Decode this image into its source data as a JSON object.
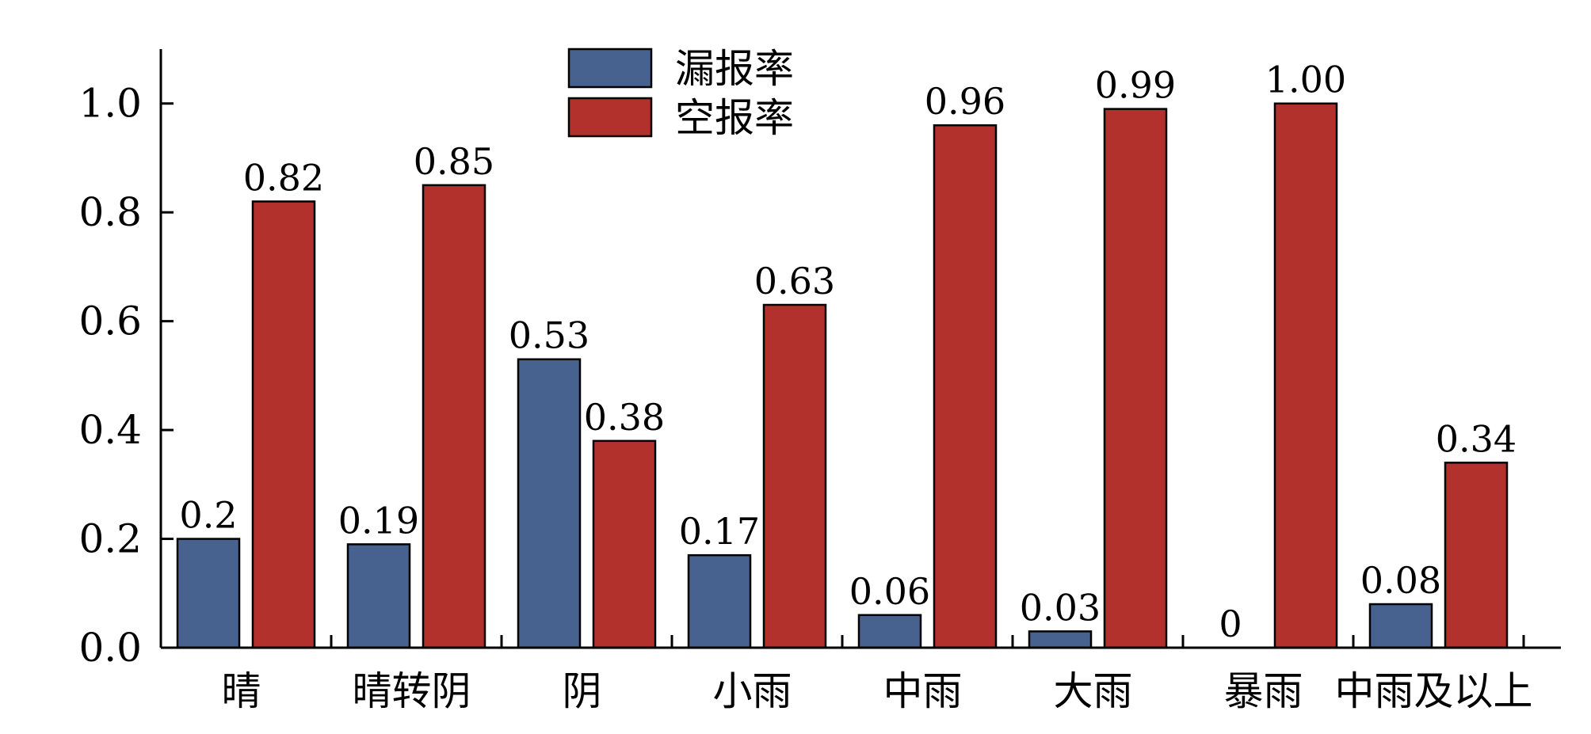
{
  "chart_data": {
    "type": "bar",
    "categories": [
      "晴",
      "晴转阴",
      "阴",
      "小雨",
      "中雨",
      "大雨",
      "暴雨",
      "中雨及以上"
    ],
    "series": [
      {
        "name": "漏报率",
        "color": "#47628f",
        "values": [
          0.2,
          0.19,
          0.53,
          0.17,
          0.06,
          0.03,
          0,
          0.08
        ],
        "labels": [
          "0.2",
          "0.19",
          "0.53",
          "0.17",
          "0.06",
          "0.03",
          "0",
          "0.08"
        ]
      },
      {
        "name": "空报率",
        "color": "#b3312d",
        "values": [
          0.82,
          0.85,
          0.38,
          0.63,
          0.96,
          0.99,
          1.0,
          0.34
        ],
        "labels": [
          "0.82",
          "0.85",
          "0.38",
          "0.63",
          "0.96",
          "0.99",
          "1.00",
          "0.34"
        ]
      }
    ],
    "ylim": [
      0,
      1.1
    ],
    "yticks": [
      "0.0",
      "0.2",
      "0.4",
      "0.6",
      "0.8",
      "1.0"
    ],
    "ytick_values": [
      0,
      0.2,
      0.4,
      0.6,
      0.8,
      1.0
    ],
    "title": "",
    "xlabel": "",
    "ylabel": "",
    "legend_position": "top-center",
    "grid": false
  }
}
